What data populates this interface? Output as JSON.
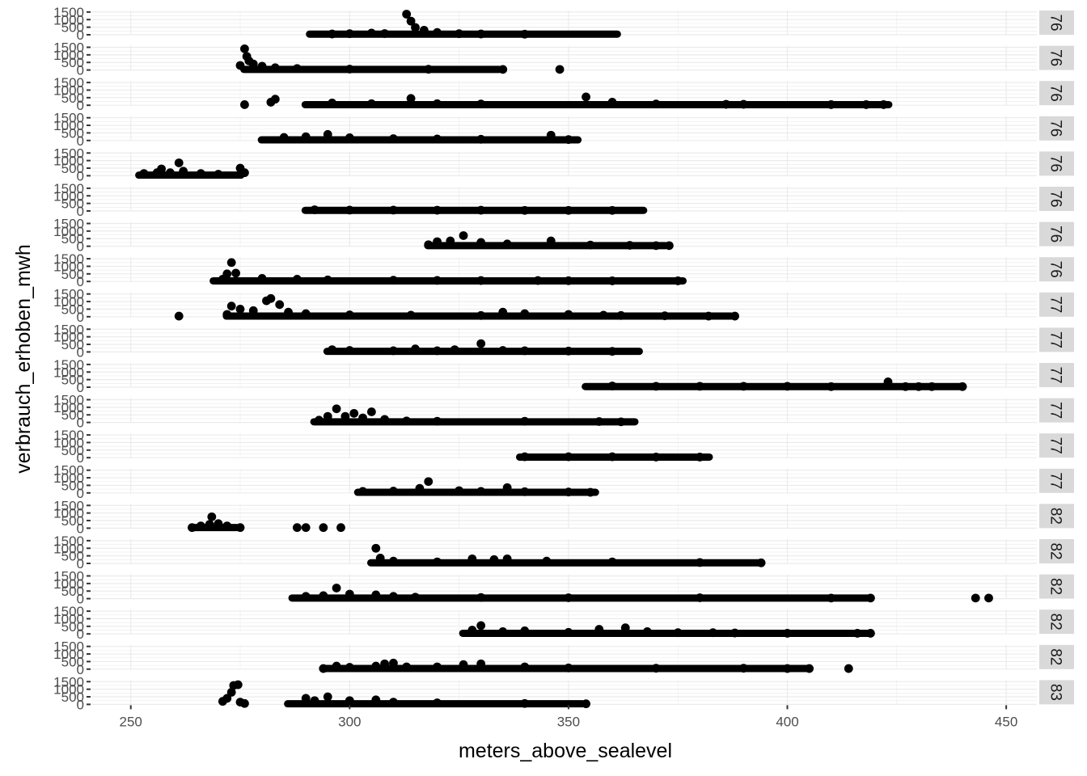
{
  "chart_data": {
    "type": "scatter",
    "facet": "rows",
    "xlabel": "meters_above_sealevel",
    "ylabel": "verbrauch_erhoben_mwh",
    "xlim": [
      241,
      457
    ],
    "xticks": [
      250,
      300,
      350,
      400,
      450
    ],
    "ylim": [
      0,
      1600
    ],
    "yticks": [
      0,
      500,
      1000,
      1500
    ],
    "grid": true,
    "point_color": "#000000",
    "panel_bg": "#ffffff",
    "gridline_color": "#ebebeb",
    "strip_bg": "#d9d9d9",
    "facets": [
      {
        "label": "76",
        "xmin": 290,
        "xmax": 362,
        "base": 40,
        "points": [
          [
            296,
            50
          ],
          [
            300,
            70
          ],
          [
            305,
            110
          ],
          [
            308,
            80
          ],
          [
            313,
            1360
          ],
          [
            314,
            900
          ],
          [
            315,
            480
          ],
          [
            317,
            300
          ],
          [
            320,
            150
          ],
          [
            325,
            70
          ],
          [
            330,
            50
          ],
          [
            340,
            40
          ]
        ]
      },
      {
        "label": "76",
        "xmin": 275,
        "xmax": 335,
        "base": 40,
        "points": [
          [
            275,
            300
          ],
          [
            276,
            1400
          ],
          [
            276.5,
            900
          ],
          [
            277,
            600
          ],
          [
            278,
            400
          ],
          [
            280,
            250
          ],
          [
            283,
            150
          ],
          [
            288,
            100
          ],
          [
            300,
            60
          ],
          [
            318,
            50
          ],
          [
            335,
            40
          ],
          [
            348,
            40
          ]
        ]
      },
      {
        "label": "76",
        "xmin": 289,
        "xmax": 424,
        "base": 40,
        "points": [
          [
            276,
            40
          ],
          [
            282,
            200
          ],
          [
            283,
            400
          ],
          [
            296,
            150
          ],
          [
            305,
            100
          ],
          [
            314,
            450
          ],
          [
            320,
            100
          ],
          [
            330,
            80
          ],
          [
            354,
            550
          ],
          [
            360,
            200
          ],
          [
            370,
            80
          ],
          [
            386,
            60
          ],
          [
            390,
            60
          ],
          [
            410,
            40
          ],
          [
            418,
            40
          ],
          [
            422,
            40
          ]
        ]
      },
      {
        "label": "76",
        "xmin": 279,
        "xmax": 353,
        "base": 40,
        "points": [
          [
            285,
            200
          ],
          [
            290,
            250
          ],
          [
            295,
            400
          ],
          [
            300,
            180
          ],
          [
            310,
            120
          ],
          [
            320,
            100
          ],
          [
            330,
            80
          ],
          [
            346,
            350
          ],
          [
            350,
            60
          ]
        ]
      },
      {
        "label": "76",
        "xmin": 251,
        "xmax": 276,
        "base": 40,
        "points": [
          [
            253,
            150
          ],
          [
            256,
            200
          ],
          [
            257,
            450
          ],
          [
            259,
            200
          ],
          [
            261,
            850
          ],
          [
            262,
            300
          ],
          [
            266,
            150
          ],
          [
            270,
            100
          ],
          [
            275,
            500
          ],
          [
            276,
            200
          ]
        ]
      },
      {
        "label": "76",
        "xmin": 289,
        "xmax": 368,
        "base": 40,
        "points": [
          [
            292,
            80
          ],
          [
            300,
            60
          ],
          [
            310,
            60
          ],
          [
            320,
            50
          ],
          [
            330,
            50
          ],
          [
            340,
            40
          ],
          [
            350,
            40
          ],
          [
            360,
            40
          ]
        ]
      },
      {
        "label": "76",
        "xmin": 317,
        "xmax": 373,
        "base": 40,
        "points": [
          [
            318,
            100
          ],
          [
            320,
            300
          ],
          [
            323,
            350
          ],
          [
            326,
            700
          ],
          [
            330,
            250
          ],
          [
            336,
            150
          ],
          [
            346,
            350
          ],
          [
            355,
            80
          ],
          [
            364,
            60
          ],
          [
            370,
            40
          ],
          [
            373,
            40
          ]
        ]
      },
      {
        "label": "76",
        "xmin": 268,
        "xmax": 377,
        "base": 40,
        "points": [
          [
            271,
            150
          ],
          [
            272,
            500
          ],
          [
            273,
            1250
          ],
          [
            274,
            550
          ],
          [
            280,
            200
          ],
          [
            288,
            150
          ],
          [
            295,
            100
          ],
          [
            310,
            80
          ],
          [
            320,
            70
          ],
          [
            330,
            60
          ],
          [
            343,
            60
          ],
          [
            350,
            50
          ],
          [
            360,
            40
          ],
          [
            375,
            40
          ]
        ]
      },
      {
        "label": "77",
        "xmin": 271,
        "xmax": 388,
        "base": 40,
        "points": [
          [
            261,
            40
          ],
          [
            272,
            150
          ],
          [
            273,
            700
          ],
          [
            275,
            500
          ],
          [
            278,
            400
          ],
          [
            281,
            1050
          ],
          [
            282,
            1200
          ],
          [
            284,
            800
          ],
          [
            286,
            300
          ],
          [
            290,
            200
          ],
          [
            300,
            120
          ],
          [
            314,
            100
          ],
          [
            330,
            80
          ],
          [
            335,
            300
          ],
          [
            340,
            200
          ],
          [
            350,
            150
          ],
          [
            358,
            100
          ],
          [
            362,
            80
          ],
          [
            372,
            60
          ],
          [
            382,
            40
          ],
          [
            388,
            40
          ]
        ]
      },
      {
        "label": "77",
        "xmin": 294,
        "xmax": 367,
        "base": 40,
        "points": [
          [
            296,
            150
          ],
          [
            300,
            100
          ],
          [
            310,
            80
          ],
          [
            315,
            200
          ],
          [
            320,
            80
          ],
          [
            324,
            150
          ],
          [
            330,
            550
          ],
          [
            335,
            100
          ],
          [
            340,
            80
          ],
          [
            350,
            60
          ],
          [
            360,
            40
          ]
        ]
      },
      {
        "label": "77",
        "xmin": 353,
        "xmax": 441,
        "base": 40,
        "points": [
          [
            360,
            80
          ],
          [
            370,
            60
          ],
          [
            380,
            60
          ],
          [
            390,
            60
          ],
          [
            400,
            60
          ],
          [
            410,
            40
          ],
          [
            423,
            350
          ],
          [
            427,
            40
          ],
          [
            430,
            40
          ],
          [
            433,
            40
          ],
          [
            440,
            40
          ]
        ]
      },
      {
        "label": "77",
        "xmin": 291,
        "xmax": 366,
        "base": 40,
        "points": [
          [
            293,
            150
          ],
          [
            295,
            400
          ],
          [
            297,
            900
          ],
          [
            299,
            400
          ],
          [
            301,
            600
          ],
          [
            303,
            300
          ],
          [
            305,
            700
          ],
          [
            308,
            200
          ],
          [
            313,
            100
          ],
          [
            320,
            80
          ],
          [
            340,
            80
          ],
          [
            357,
            60
          ],
          [
            362,
            40
          ]
        ]
      },
      {
        "label": "77",
        "xmin": 338,
        "xmax": 383,
        "base": 40,
        "points": [
          [
            340,
            60
          ],
          [
            350,
            60
          ],
          [
            360,
            60
          ],
          [
            370,
            40
          ],
          [
            380,
            40
          ]
        ]
      },
      {
        "label": "77",
        "xmin": 301,
        "xmax": 357,
        "base": 40,
        "points": [
          [
            303,
            100
          ],
          [
            310,
            120
          ],
          [
            316,
            300
          ],
          [
            318,
            750
          ],
          [
            325,
            150
          ],
          [
            330,
            100
          ],
          [
            336,
            350
          ],
          [
            340,
            80
          ],
          [
            350,
            60
          ],
          [
            355,
            40
          ]
        ]
      },
      {
        "label": "82",
        "xmin": 263,
        "xmax": 275,
        "base": 40,
        "points": [
          [
            264,
            40
          ],
          [
            266,
            150
          ],
          [
            268,
            250
          ],
          [
            268.5,
            750
          ],
          [
            270,
            300
          ],
          [
            272,
            150
          ],
          [
            275,
            40
          ],
          [
            288,
            40
          ],
          [
            290,
            40
          ],
          [
            294,
            40
          ],
          [
            298,
            40
          ]
        ]
      },
      {
        "label": "82",
        "xmin": 304,
        "xmax": 395,
        "base": 40,
        "points": [
          [
            306,
            1000
          ],
          [
            307,
            350
          ],
          [
            310,
            150
          ],
          [
            320,
            100
          ],
          [
            328,
            300
          ],
          [
            333,
            250
          ],
          [
            336,
            300
          ],
          [
            345,
            150
          ],
          [
            360,
            100
          ],
          [
            380,
            60
          ],
          [
            394,
            40
          ]
        ]
      },
      {
        "label": "82",
        "xmin": 286,
        "xmax": 420,
        "base": 40,
        "points": [
          [
            290,
            150
          ],
          [
            294,
            200
          ],
          [
            297,
            700
          ],
          [
            300,
            300
          ],
          [
            306,
            250
          ],
          [
            310,
            150
          ],
          [
            315,
            100
          ],
          [
            330,
            80
          ],
          [
            350,
            60
          ],
          [
            380,
            60
          ],
          [
            410,
            40
          ],
          [
            419,
            40
          ],
          [
            443,
            40
          ],
          [
            446,
            40
          ]
        ]
      },
      {
        "label": "82",
        "xmin": 325,
        "xmax": 420,
        "base": 40,
        "points": [
          [
            328,
            250
          ],
          [
            330,
            550
          ],
          [
            335,
            150
          ],
          [
            340,
            200
          ],
          [
            350,
            100
          ],
          [
            357,
            300
          ],
          [
            363,
            400
          ],
          [
            368,
            150
          ],
          [
            375,
            80
          ],
          [
            383,
            80
          ],
          [
            388,
            60
          ],
          [
            400,
            40
          ],
          [
            416,
            40
          ],
          [
            419,
            40
          ]
        ]
      },
      {
        "label": "82",
        "xmin": 293,
        "xmax": 406,
        "base": 40,
        "points": [
          [
            294,
            40
          ],
          [
            297,
            200
          ],
          [
            300,
            120
          ],
          [
            306,
            200
          ],
          [
            308,
            350
          ],
          [
            310,
            400
          ],
          [
            313,
            150
          ],
          [
            320,
            150
          ],
          [
            326,
            300
          ],
          [
            330,
            350
          ],
          [
            340,
            150
          ],
          [
            350,
            80
          ],
          [
            370,
            60
          ],
          [
            390,
            60
          ],
          [
            400,
            40
          ],
          [
            405,
            40
          ],
          [
            414,
            40
          ]
        ]
      },
      {
        "label": "83",
        "xmin": 285,
        "xmax": 354,
        "base": 40,
        "points": [
          [
            271,
            200
          ],
          [
            272,
            400
          ],
          [
            273,
            800
          ],
          [
            273.5,
            1250
          ],
          [
            274.5,
            1300
          ],
          [
            275,
            150
          ],
          [
            276,
            60
          ],
          [
            290,
            400
          ],
          [
            292,
            250
          ],
          [
            295,
            500
          ],
          [
            300,
            250
          ],
          [
            306,
            300
          ],
          [
            310,
            150
          ],
          [
            320,
            100
          ],
          [
            340,
            60
          ],
          [
            354,
            40
          ]
        ]
      }
    ]
  }
}
